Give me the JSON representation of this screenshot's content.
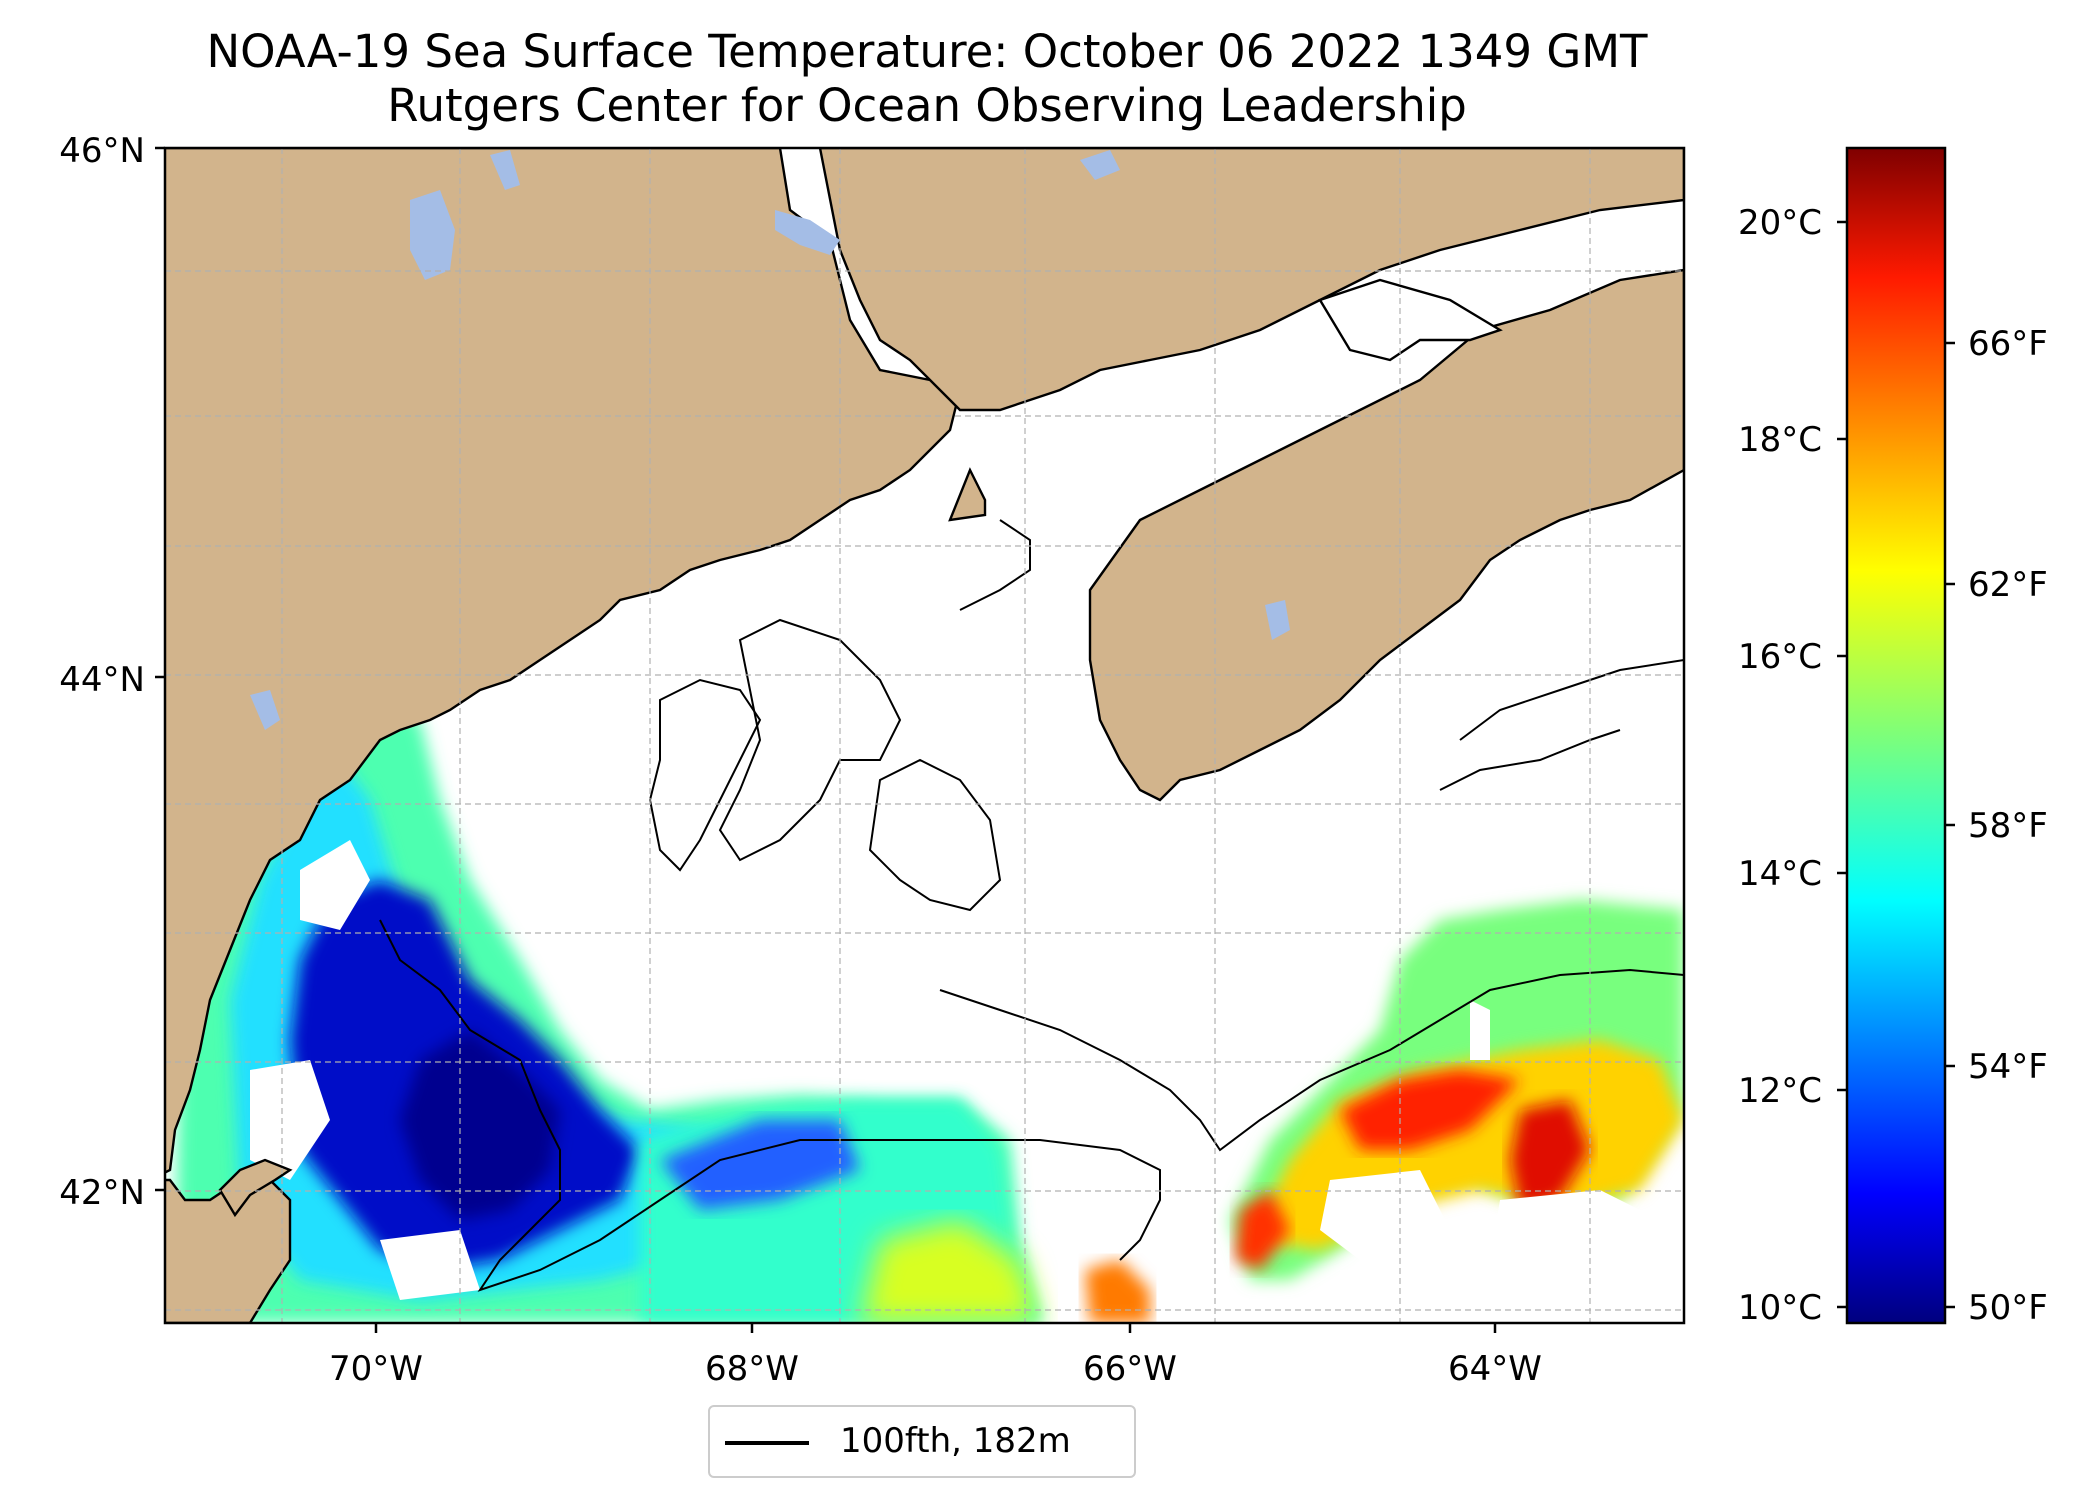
{
  "title": "NOAA-19 Sea Surface Temperature: October 06 2022 1349 GMT",
  "subtitle": "Rutgers Center for Ocean Observing Leadership",
  "map": {
    "lat_labels": [
      "46°N",
      "44°N",
      "42°N"
    ],
    "lon_labels": [
      "70°W",
      "68°W",
      "66°W",
      "64°W"
    ],
    "colors": {
      "land": "#d2b48c",
      "lake": "#a4bde6",
      "ocean_no_data": "#ffffff",
      "grid": "#b0b0b0",
      "coast": "#000000"
    },
    "extent": {
      "lon": [
        -71.2,
        -63.0
      ],
      "lat": [
        41.5,
        46.0
      ]
    }
  },
  "legend": {
    "label": "100fth, 182m"
  },
  "colorbar": {
    "colormap": "jet",
    "celsius_ticks": [
      "20°C",
      "18°C",
      "16°C",
      "14°C",
      "12°C",
      "10°C"
    ],
    "fahrenheit_ticks": [
      "66°F",
      "62°F",
      "58°F",
      "54°F",
      "50°F"
    ],
    "range_c": [
      9.8,
      20.6
    ]
  }
}
